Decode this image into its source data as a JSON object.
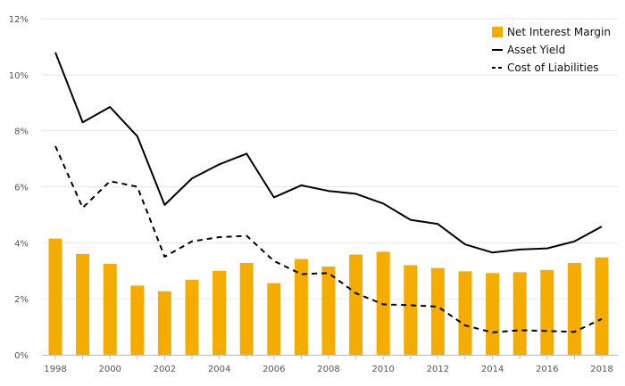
{
  "chart_data": {
    "type": "bar+line",
    "x": [
      1998,
      1999,
      2000,
      2001,
      2002,
      2003,
      2004,
      2005,
      2006,
      2007,
      2008,
      2009,
      2010,
      2011,
      2012,
      2013,
      2014,
      2015,
      2016,
      2017,
      2018
    ],
    "x_tick_labels": [
      "1998",
      "2000",
      "2002",
      "2004",
      "2006",
      "2008",
      "2010",
      "2012",
      "2014",
      "2016",
      "2018"
    ],
    "y_tick_labels": [
      "0%",
      "2%",
      "4%",
      "6%",
      "8%",
      "10%",
      "12%"
    ],
    "ylim": [
      0,
      12
    ],
    "y_unit": "%",
    "grid": true,
    "legend_position": "top-right",
    "series": [
      {
        "name": "Net Interest Margin",
        "kind": "bar",
        "color": "#f5ac00",
        "values": [
          4.15,
          3.6,
          3.25,
          2.47,
          2.27,
          2.68,
          3.0,
          3.28,
          2.56,
          3.42,
          3.15,
          3.58,
          3.68,
          3.2,
          3.1,
          2.98,
          2.92,
          2.95,
          3.03,
          3.28,
          3.48
        ]
      },
      {
        "name": "Asset Yield",
        "kind": "line",
        "style": "solid",
        "color": "#000000",
        "values": [
          10.8,
          8.3,
          8.85,
          7.8,
          5.35,
          6.3,
          6.8,
          7.18,
          5.62,
          6.05,
          5.85,
          5.75,
          5.4,
          4.82,
          4.67,
          3.94,
          3.65,
          3.76,
          3.8,
          4.05,
          4.58
        ]
      },
      {
        "name": "Cost of Liabilities",
        "kind": "line",
        "style": "dashed",
        "color": "#000000",
        "values": [
          7.45,
          5.25,
          6.2,
          6.0,
          3.5,
          4.05,
          4.2,
          4.25,
          3.35,
          2.88,
          2.92,
          2.2,
          1.8,
          1.77,
          1.72,
          1.05,
          0.8,
          0.88,
          0.85,
          0.82,
          1.28
        ]
      }
    ]
  }
}
